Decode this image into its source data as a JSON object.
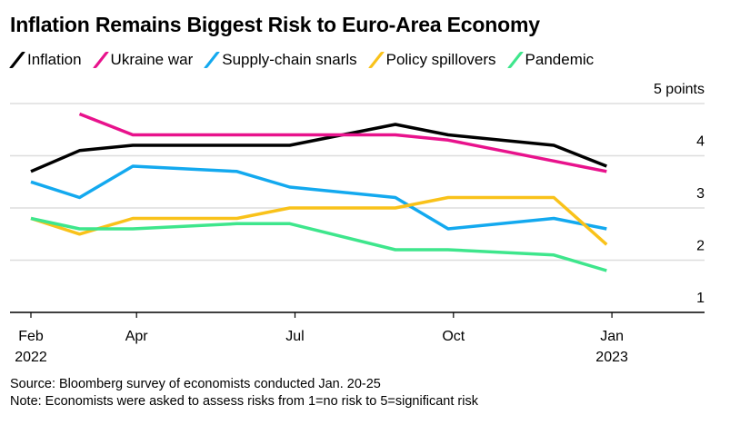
{
  "chart_data": {
    "type": "line",
    "title": "Inflation Remains Biggest Risk to Euro-Area Economy",
    "xlabel": "",
    "ylabel": "",
    "y_unit_label": "5 points",
    "ylim": [
      1,
      5
    ],
    "yticks": [
      1,
      2,
      3,
      4,
      5
    ],
    "ytick_labels": [
      "1",
      "2",
      "3",
      "4",
      "5 points"
    ],
    "grid": true,
    "legend_position": "top-left",
    "x_months": [
      0,
      0.92,
      1.93,
      3.9,
      4.9,
      6.9,
      7.9,
      9.9,
      10.9
    ],
    "x_dates": [
      "Feb 2022",
      "Mar 2022",
      "Apr 2022",
      "Jun 2022",
      "Jul 2022",
      "Sep 2022",
      "Oct 2022",
      "Dec 2022",
      "Jan 2023"
    ],
    "xlim_months": [
      -0.4,
      12.7
    ],
    "xticks": [
      {
        "month": 0,
        "label": "Feb",
        "sublabel": "2022"
      },
      {
        "month": 2,
        "label": "Apr",
        "sublabel": ""
      },
      {
        "month": 5,
        "label": "Jul",
        "sublabel": ""
      },
      {
        "month": 8,
        "label": "Oct",
        "sublabel": ""
      },
      {
        "month": 11,
        "label": "Jan",
        "sublabel": "2023"
      }
    ],
    "series": [
      {
        "name": "Inflation",
        "color": "#000000",
        "values": [
          3.7,
          4.1,
          4.2,
          4.2,
          4.2,
          4.6,
          4.4,
          4.2,
          3.8
        ]
      },
      {
        "name": "Ukraine war",
        "color": "#e8128c",
        "values": [
          null,
          4.8,
          4.4,
          4.4,
          4.4,
          4.4,
          4.3,
          3.9,
          3.7
        ]
      },
      {
        "name": "Supply-chain snarls",
        "color": "#13a9ef",
        "values": [
          3.5,
          3.2,
          3.8,
          3.7,
          3.4,
          3.2,
          2.6,
          2.8,
          2.6
        ]
      },
      {
        "name": "Policy spillovers",
        "color": "#f9c21a",
        "values": [
          2.8,
          2.5,
          2.8,
          2.8,
          3.0,
          3.0,
          3.2,
          3.2,
          2.3
        ]
      },
      {
        "name": "Pandemic",
        "color": "#3ee68c",
        "values": [
          2.8,
          2.6,
          2.6,
          2.7,
          2.7,
          2.2,
          2.2,
          2.1,
          1.8
        ]
      }
    ]
  },
  "footer": {
    "source": "Source: Bloomberg survey of economists conducted Jan. 20-25",
    "note": "Note: Economists were asked to assess risks from 1=no risk to 5=significant risk"
  }
}
